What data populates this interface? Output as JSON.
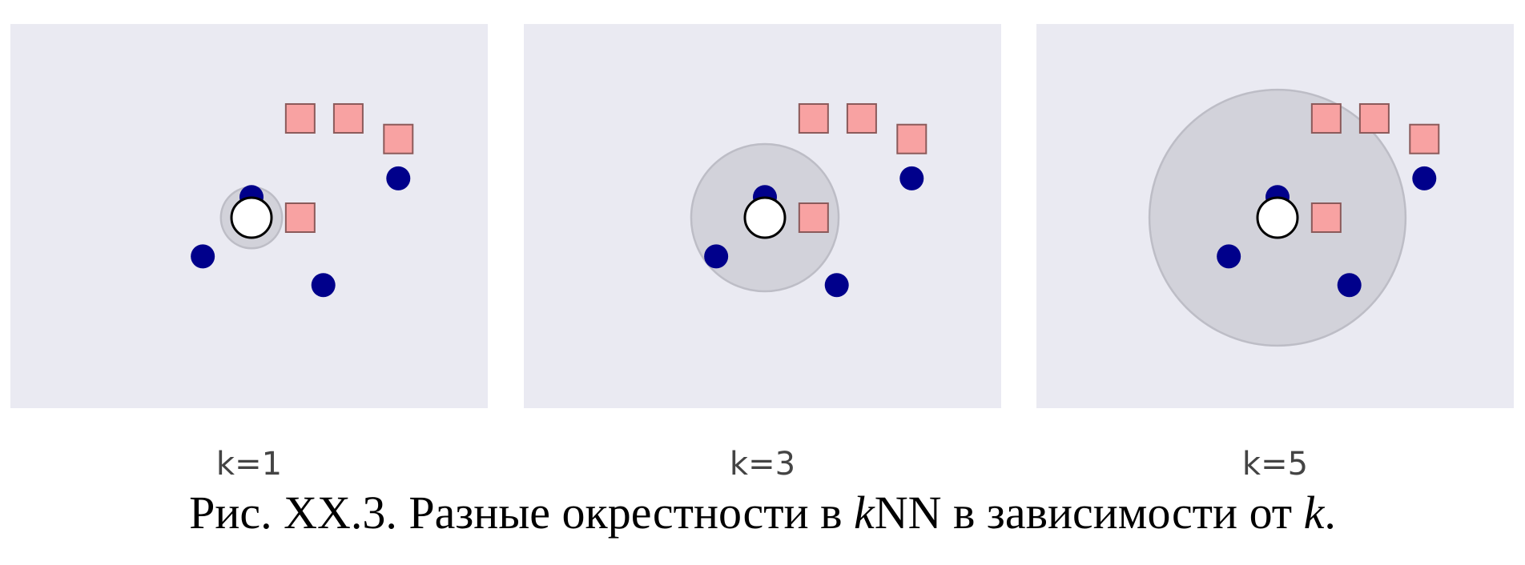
{
  "panels": [
    {
      "label": "k=1",
      "k": 1
    },
    {
      "label": "k=3",
      "k": 3
    },
    {
      "label": "k=5",
      "k": 5
    }
  ],
  "points": {
    "query": {
      "x": 0,
      "y": 0
    },
    "blue": [
      {
        "x": 0,
        "y": -0.33
      },
      {
        "x": -0.78,
        "y": 0.62
      },
      {
        "x": 1.15,
        "y": 1.08
      },
      {
        "x": 2.35,
        "y": -0.63
      }
    ],
    "red": [
      {
        "x": 0.78,
        "y": 0
      },
      {
        "x": 0.78,
        "y": -1.59
      },
      {
        "x": 1.55,
        "y": -1.59
      },
      {
        "x": 2.35,
        "y": -1.26
      }
    ]
  },
  "neighborhood_radius": {
    "1": 0.49,
    "3": 1.18,
    "5": 2.05
  },
  "caption": {
    "prefix": "Рис. XX.3. Разные окрестности в ",
    "k_italic": "k",
    "nn": "NN",
    "suffix": " в зависимости от ",
    "k_end": "k",
    "period": "."
  },
  "colors": {
    "panel_bg": "#eaeaf2",
    "neighborhood": "#d2d2da",
    "blue_point": "#00008b",
    "red_point": "#f8a2a2",
    "query_point": "#ffffff"
  }
}
